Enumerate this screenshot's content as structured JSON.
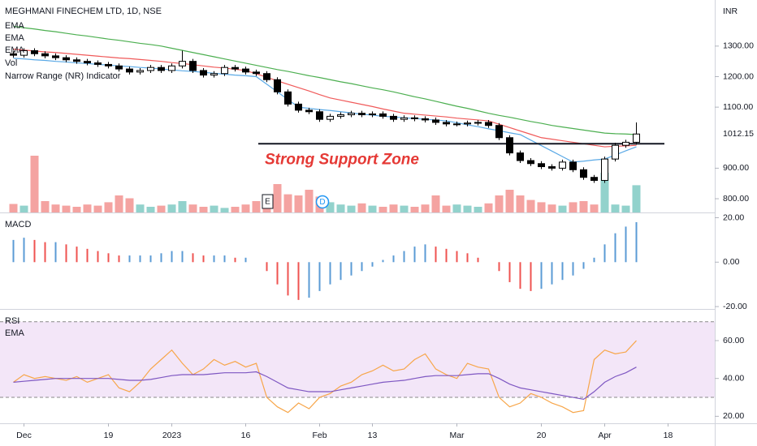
{
  "chart_data": [
    {
      "type": "candlestick",
      "title": "MEGHMANI FINECHEM LTD, 1D, NSE",
      "y_label": "INR",
      "categories": [
        null,
        "Dec",
        null,
        null,
        null,
        null,
        null,
        null,
        null,
        "19",
        null,
        null,
        null,
        null,
        null,
        "2023",
        null,
        null,
        null,
        null,
        null,
        null,
        "16",
        null,
        null,
        null,
        null,
        null,
        null,
        "Feb",
        null,
        null,
        null,
        null,
        "13",
        null,
        null,
        null,
        null,
        null,
        null,
        null,
        "Mar",
        null,
        null,
        null,
        null,
        null,
        null,
        null,
        "20",
        null,
        null,
        null,
        null,
        null,
        "Apr",
        null,
        null,
        null,
        null,
        null,
        "18"
      ],
      "open": [
        1275,
        1270,
        1285,
        1275,
        1268,
        1262,
        1255,
        1250,
        1245,
        1240,
        1235,
        1225,
        1215,
        1220,
        1230,
        1220,
        1235,
        1250,
        1220,
        1205,
        1210,
        1230,
        1225,
        1215,
        1210,
        1190,
        1150,
        1110,
        1090,
        1085,
        1060,
        1070,
        1075,
        1080,
        1075,
        1078,
        1070,
        1060,
        1065,
        1062,
        1058,
        1050,
        1045,
        1045,
        1048,
        1050,
        1040,
        1000,
        950,
        925,
        915,
        905,
        900,
        920,
        895,
        870,
        860,
        930,
        975,
        985,
        null,
        null,
        null
      ],
      "high": [
        1283,
        1293,
        1293,
        1283,
        1276,
        1270,
        1263,
        1258,
        1253,
        1248,
        1243,
        1233,
        1228,
        1238,
        1238,
        1243,
        1285,
        1258,
        1228,
        1218,
        1238,
        1238,
        1233,
        1223,
        1218,
        1198,
        1158,
        1118,
        1098,
        1093,
        1078,
        1083,
        1088,
        1088,
        1086,
        1086,
        1078,
        1073,
        1073,
        1070,
        1066,
        1058,
        1053,
        1056,
        1058,
        1058,
        1048,
        1008,
        958,
        933,
        923,
        913,
        928,
        928,
        903,
        878,
        938,
        983,
        993,
        1050,
        null,
        null,
        null
      ],
      "low": [
        1262,
        1262,
        1267,
        1260,
        1254,
        1247,
        1242,
        1237,
        1232,
        1227,
        1217,
        1207,
        1207,
        1212,
        1212,
        1212,
        1227,
        1212,
        1197,
        1197,
        1202,
        1217,
        1207,
        1202,
        1182,
        1142,
        1102,
        1082,
        1077,
        1052,
        1052,
        1062,
        1067,
        1067,
        1067,
        1062,
        1052,
        1052,
        1054,
        1050,
        1042,
        1037,
        1037,
        1037,
        1040,
        1032,
        992,
        942,
        917,
        907,
        897,
        892,
        892,
        887,
        862,
        852,
        852,
        922,
        967,
        977,
        null,
        null,
        null
      ],
      "close": [
        1270,
        1285,
        1275,
        1268,
        1262,
        1255,
        1250,
        1245,
        1240,
        1235,
        1225,
        1215,
        1220,
        1230,
        1220,
        1235,
        1250,
        1220,
        1205,
        1210,
        1230,
        1225,
        1215,
        1210,
        1190,
        1150,
        1110,
        1090,
        1085,
        1060,
        1070,
        1075,
        1080,
        1075,
        1078,
        1070,
        1060,
        1065,
        1062,
        1058,
        1050,
        1045,
        1045,
        1048,
        1050,
        1040,
        1000,
        950,
        925,
        915,
        905,
        900,
        920,
        895,
        870,
        860,
        930,
        975,
        985,
        1012,
        null,
        null,
        null
      ],
      "up_color": "#ffffff",
      "down_color": "#000000",
      "series": [
        {
          "name": "EMA",
          "color": "#5aa9e6",
          "values": [
            1260,
            1258,
            1255,
            1253,
            1250,
            1248,
            1245,
            1243,
            1240,
            1238,
            1235,
            1233,
            1230,
            1228,
            1225,
            1222,
            1219,
            1217,
            1214,
            1211,
            1208,
            1205,
            1203,
            1200,
            1175,
            1150,
            1125,
            1100,
            1096,
            1092,
            1089,
            1085,
            1081,
            1077,
            1074,
            1070,
            1068,
            1065,
            1063,
            1060,
            1058,
            1055,
            1049,
            1042,
            1036,
            1029,
            1023,
            1016,
            1010,
            992,
            974,
            956,
            938,
            920,
            923,
            927,
            930,
            943,
            957,
            970,
            null,
            null,
            null
          ]
        },
        {
          "name": "EMA",
          "color": "#f05a5a",
          "values": [
            1290,
            1287,
            1284,
            1281,
            1279,
            1276,
            1273,
            1270,
            1267,
            1264,
            1261,
            1259,
            1256,
            1253,
            1250,
            1246,
            1243,
            1239,
            1235,
            1231,
            1228,
            1224,
            1220,
            1209,
            1198,
            1186,
            1175,
            1164,
            1153,
            1141,
            1130,
            1123,
            1116,
            1109,
            1102,
            1094,
            1087,
            1080,
            1077,
            1074,
            1071,
            1068,
            1064,
            1061,
            1058,
            1055,
            1044,
            1033,
            1022,
            1011,
            1000,
            995,
            990,
            985,
            980,
            975,
            970,
            972,
            973,
            975,
            null,
            null,
            null
          ]
        },
        {
          "name": "EMA",
          "color": "#4caf50",
          "values": [
            1365,
            1360,
            1356,
            1351,
            1347,
            1342,
            1337,
            1333,
            1328,
            1323,
            1319,
            1314,
            1309,
            1305,
            1300,
            1293,
            1286,
            1279,
            1272,
            1265,
            1258,
            1251,
            1244,
            1237,
            1230,
            1223,
            1217,
            1210,
            1203,
            1197,
            1190,
            1183,
            1177,
            1170,
            1163,
            1157,
            1150,
            1142,
            1134,
            1127,
            1119,
            1111,
            1103,
            1096,
            1088,
            1080,
            1073,
            1067,
            1060,
            1053,
            1047,
            1040,
            1035,
            1030,
            1025,
            1020,
            1015,
            1013,
            1012,
            1010,
            null,
            null,
            null
          ]
        }
      ],
      "volume": {
        "name": "Vol",
        "up_color": "#92d2cc",
        "down_color": "#f4a3a1",
        "values": [
          15,
          12,
          100,
          20,
          14,
          12,
          10,
          14,
          12,
          18,
          30,
          25,
          14,
          10,
          12,
          14,
          20,
          14,
          10,
          12,
          8,
          10,
          14,
          20,
          30,
          50,
          32,
          30,
          40,
          28,
          18,
          14,
          12,
          16,
          12,
          10,
          14,
          12,
          10,
          14,
          30,
          12,
          14,
          12,
          10,
          16,
          30,
          40,
          30,
          22,
          18,
          14,
          12,
          18,
          20,
          14,
          70,
          14,
          12,
          48,
          null,
          null,
          null
        ]
      },
      "indicators": [
        "Narrow Range (NR) Indicator"
      ],
      "events": [
        "E",
        "D"
      ],
      "annotations": [
        {
          "text": "Strong Support Zone",
          "value": 980
        }
      ],
      "last_price": 1012.15,
      "ylim": [
        755,
        1451
      ],
      "yticks": [
        {
          "value": 1300,
          "label": "1300.00"
        },
        {
          "value": 1200,
          "label": "1200.00"
        },
        {
          "value": 1100,
          "label": "1100.00"
        },
        {
          "value": 900,
          "label": "900.00"
        },
        {
          "value": 800,
          "label": "800.00"
        }
      ]
    },
    {
      "type": "histogram_bars",
      "title": "MACD",
      "up_color": "#5b9bd5",
      "down_color": "#ef5350",
      "values": [
        10,
        11,
        10,
        9,
        9,
        8,
        7,
        6,
        5,
        4,
        3,
        3,
        3,
        3,
        4,
        5,
        5,
        4,
        3,
        3,
        3,
        2,
        2,
        0,
        -4,
        -10,
        -15,
        -17,
        -16,
        -13,
        -10,
        -8,
        -6,
        -4,
        -2,
        1,
        3,
        5,
        7,
        8,
        7,
        6,
        5,
        4,
        2,
        0,
        -4,
        -9,
        -12,
        -13,
        -12,
        -10,
        -8,
        -6,
        -3,
        2,
        8,
        13,
        16,
        18,
        null,
        null,
        null
      ],
      "ylim": [
        -20.7,
        22
      ],
      "yticks": [
        {
          "value": 20,
          "label": "20.00"
        },
        {
          "value": 0,
          "label": "0.00"
        },
        {
          "value": -20,
          "label": "-20.00"
        }
      ]
    },
    {
      "type": "line",
      "title": "RSI",
      "band": [
        30,
        70
      ],
      "band_color": "#f3e6f8",
      "series": [
        {
          "name": "RSI",
          "color": "#f7a64a",
          "values": [
            38,
            42,
            40,
            41,
            40,
            39,
            41,
            38,
            40,
            42,
            35,
            33,
            38,
            45,
            50,
            55,
            48,
            42,
            45,
            50,
            47,
            49,
            46,
            48,
            30,
            25,
            22,
            27,
            24,
            30,
            32,
            36,
            38,
            42,
            44,
            47,
            44,
            45,
            50,
            53,
            45,
            42,
            40,
            48,
            46,
            45,
            30,
            25,
            27,
            32,
            30,
            27,
            25,
            22,
            23,
            50,
            55,
            53,
            54,
            60,
            null,
            null,
            null
          ]
        },
        {
          "name": "EMA",
          "color": "#7e57c2",
          "values": [
            38,
            38.5,
            39,
            39.5,
            40,
            40,
            40,
            40,
            40,
            40,
            39.5,
            39,
            39,
            39.5,
            40.5,
            41.5,
            42,
            42,
            42,
            42.5,
            43,
            43,
            43,
            43.5,
            41,
            38,
            35,
            34,
            33,
            33,
            33,
            34,
            35,
            36,
            37,
            38,
            38.5,
            39,
            40,
            41,
            41.5,
            41.5,
            41.5,
            42,
            42.5,
            42.5,
            40,
            37,
            35,
            34,
            33,
            32,
            31,
            30,
            29,
            33,
            38,
            41,
            43,
            46,
            null,
            null,
            null
          ]
        }
      ],
      "ylim": [
        16.3,
        76.3
      ],
      "yticks": [
        {
          "value": 60,
          "label": "60.00"
        },
        {
          "value": 40,
          "label": "40.00"
        },
        {
          "value": 20,
          "label": "20.00"
        }
      ]
    }
  ]
}
